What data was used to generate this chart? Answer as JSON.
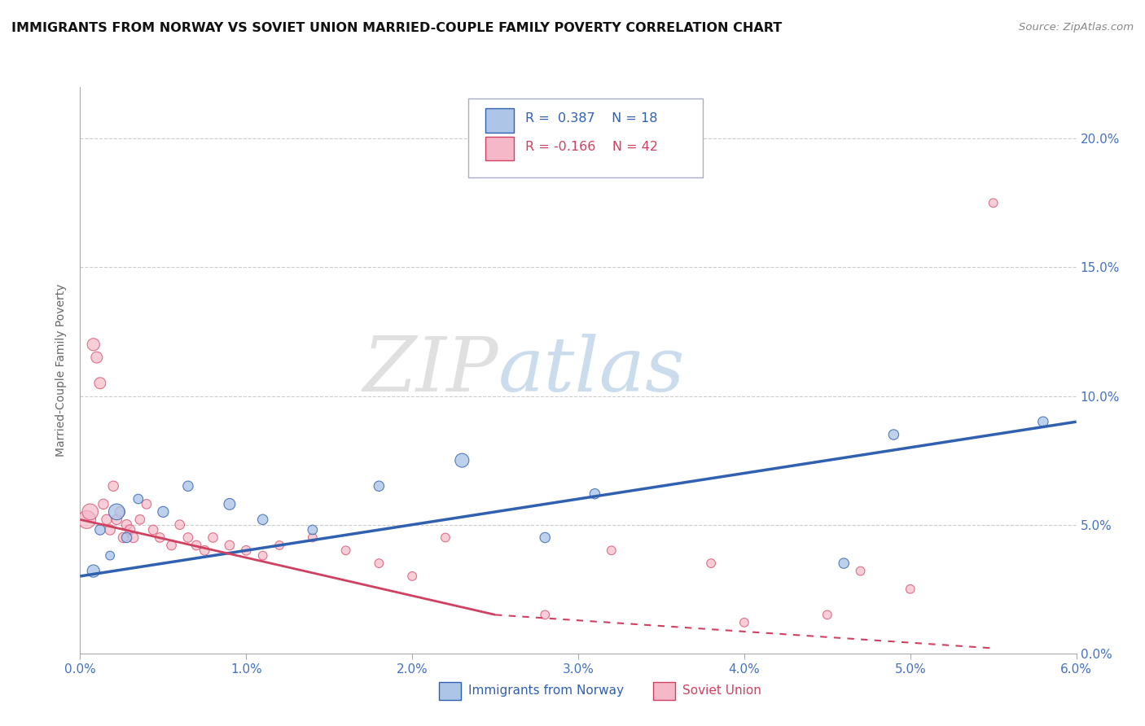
{
  "title": "IMMIGRANTS FROM NORWAY VS SOVIET UNION MARRIED-COUPLE FAMILY POVERTY CORRELATION CHART",
  "source": "Source: ZipAtlas.com",
  "ylabel": "Married-Couple Family Poverty",
  "xlim": [
    0.0,
    6.0
  ],
  "ylim": [
    0.0,
    22.0
  ],
  "xticks": [
    0.0,
    1.0,
    2.0,
    3.0,
    4.0,
    5.0,
    6.0
  ],
  "xtick_labels": [
    "0.0%",
    "1.0%",
    "2.0%",
    "3.0%",
    "4.0%",
    "5.0%",
    "6.0%"
  ],
  "yticks": [
    0.0,
    5.0,
    10.0,
    15.0,
    20.0
  ],
  "ytick_labels": [
    "0.0%",
    "5.0%",
    "10.0%",
    "15.0%",
    "20.0%"
  ],
  "norway_R": 0.387,
  "norway_N": 18,
  "soviet_R": -0.166,
  "soviet_N": 42,
  "norway_color": "#adc6e8",
  "soviet_color": "#f5b8c8",
  "norway_line_color": "#3060b0",
  "soviet_line_color": "#d04060",
  "background_color": "#ffffff",
  "watermark_zip": "ZIP",
  "watermark_atlas": "atlas",
  "norway_scatter_x": [
    0.08,
    0.12,
    0.18,
    0.22,
    0.28,
    0.35,
    0.5,
    0.65,
    0.9,
    1.1,
    1.4,
    1.8,
    2.3,
    2.8,
    3.1,
    4.6,
    4.9,
    5.8
  ],
  "norway_scatter_y": [
    3.2,
    4.8,
    3.8,
    5.5,
    4.5,
    6.0,
    5.5,
    6.5,
    5.8,
    5.2,
    4.8,
    6.5,
    7.5,
    4.5,
    6.2,
    3.5,
    8.5,
    9.0
  ],
  "norway_scatter_size": [
    120,
    80,
    60,
    200,
    80,
    70,
    90,
    80,
    100,
    80,
    70,
    80,
    150,
    80,
    80,
    80,
    80,
    80
  ],
  "soviet_scatter_x": [
    0.04,
    0.06,
    0.08,
    0.1,
    0.12,
    0.14,
    0.16,
    0.18,
    0.2,
    0.22,
    0.24,
    0.26,
    0.28,
    0.3,
    0.32,
    0.36,
    0.4,
    0.44,
    0.48,
    0.55,
    0.6,
    0.65,
    0.7,
    0.75,
    0.8,
    0.9,
    1.0,
    1.1,
    1.2,
    1.4,
    1.6,
    1.8,
    2.0,
    2.2,
    2.8,
    3.2,
    3.8,
    4.0,
    4.5,
    4.7,
    5.0,
    5.5
  ],
  "soviet_scatter_y": [
    5.2,
    5.5,
    12.0,
    11.5,
    10.5,
    5.8,
    5.2,
    4.8,
    6.5,
    5.2,
    5.5,
    4.5,
    5.0,
    4.8,
    4.5,
    5.2,
    5.8,
    4.8,
    4.5,
    4.2,
    5.0,
    4.5,
    4.2,
    4.0,
    4.5,
    4.2,
    4.0,
    3.8,
    4.2,
    4.5,
    4.0,
    3.5,
    3.0,
    4.5,
    1.5,
    4.0,
    3.5,
    1.2,
    1.5,
    3.2,
    2.5,
    17.5
  ],
  "soviet_scatter_size": [
    250,
    200,
    120,
    100,
    100,
    80,
    80,
    80,
    80,
    80,
    80,
    80,
    80,
    80,
    80,
    70,
    70,
    70,
    70,
    70,
    70,
    70,
    70,
    70,
    70,
    70,
    70,
    60,
    60,
    60,
    60,
    60,
    60,
    60,
    60,
    60,
    60,
    60,
    60,
    60,
    60,
    60
  ],
  "norway_trend_x0": 0.0,
  "norway_trend_y0": 3.0,
  "norway_trend_x1": 6.0,
  "norway_trend_y1": 9.0,
  "soviet_trend_solid_x0": 0.0,
  "soviet_trend_solid_y0": 5.2,
  "soviet_trend_solid_x1": 2.5,
  "soviet_trend_solid_y1": 1.5,
  "soviet_trend_dash_x0": 2.5,
  "soviet_trend_dash_y0": 1.5,
  "soviet_trend_dash_x1": 5.5,
  "soviet_trend_dash_y1": 0.2
}
